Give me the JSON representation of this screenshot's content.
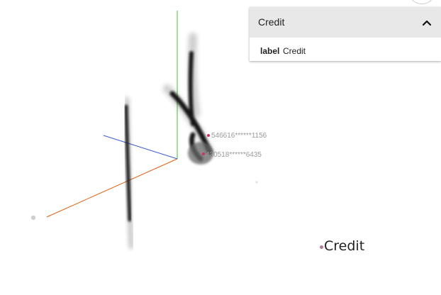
{
  "panel": {
    "title": "Credit",
    "fields": [
      {
        "key": "label",
        "value": "Credit"
      }
    ],
    "icons": {
      "collapse": "chevron-up-icon"
    }
  },
  "labels": {
    "point_a": "546616******1156",
    "point_b": "430518******6435"
  },
  "legend": {
    "label": "Credit",
    "color": "#b07a9a"
  },
  "colors": {
    "x_axis": "#e06010",
    "y_axis": "#40c030",
    "z_axis": "#3a5fcf",
    "points": "#111111",
    "highlight": "#d0306a"
  }
}
